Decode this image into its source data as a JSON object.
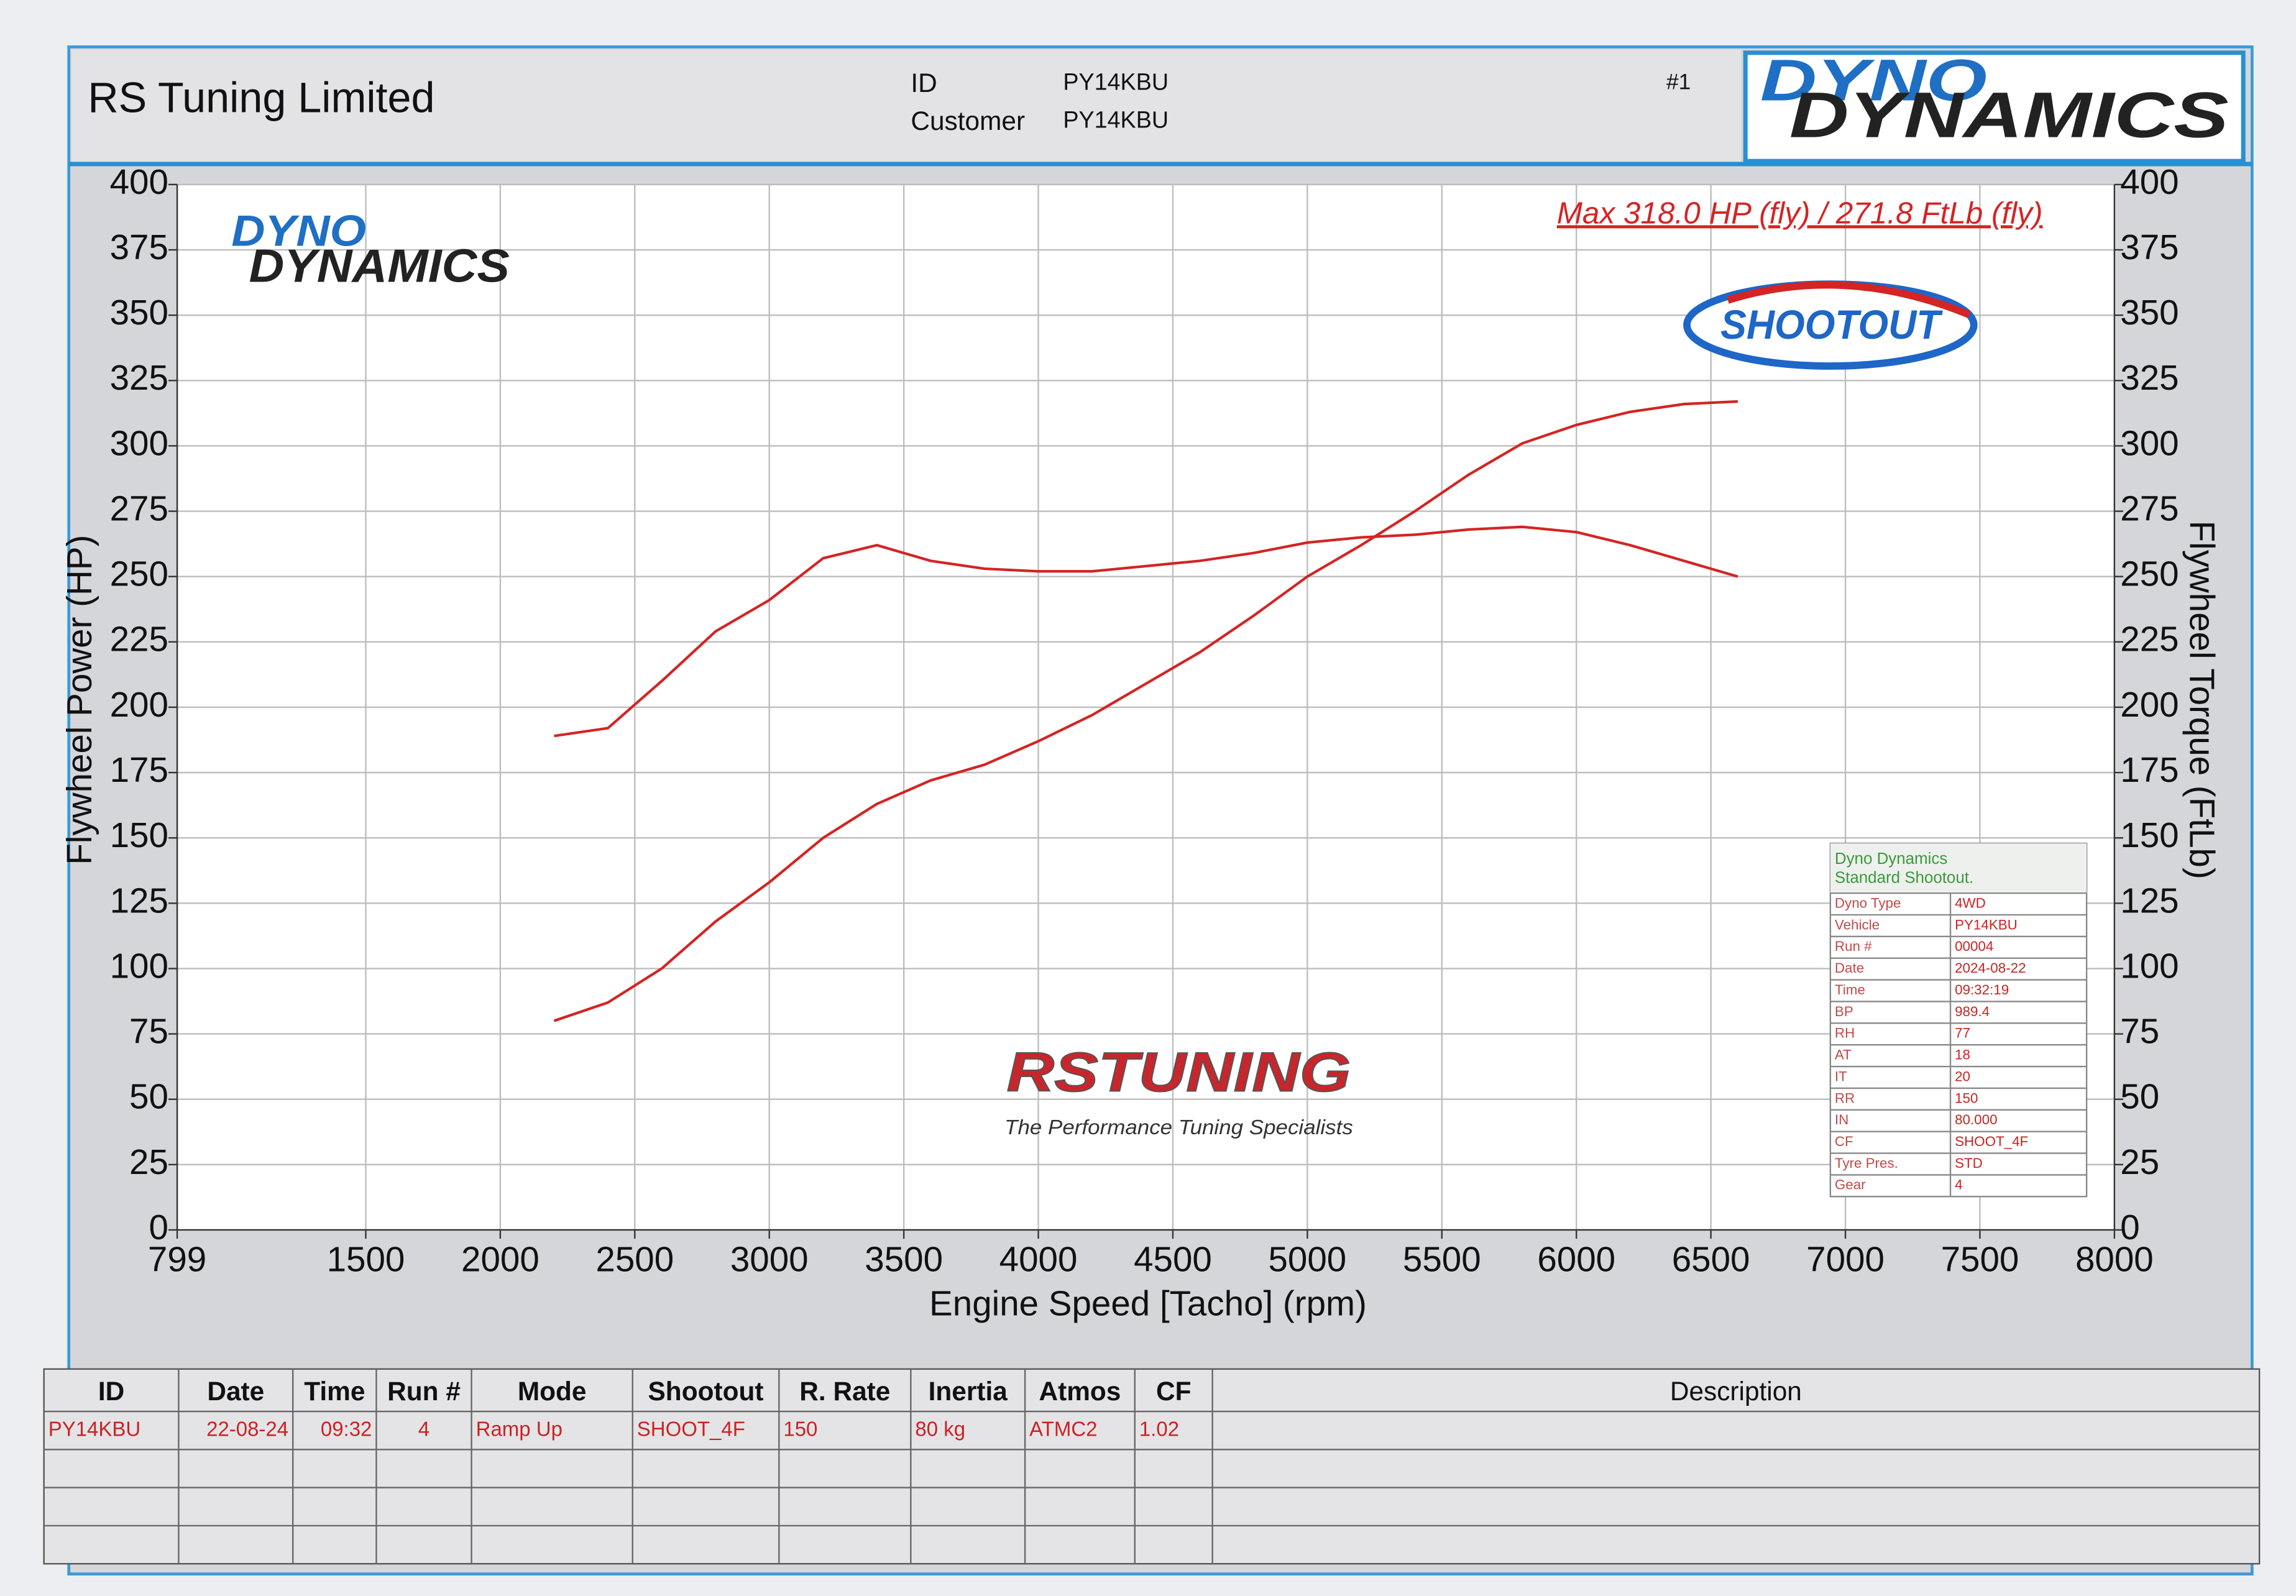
{
  "header": {
    "company": "RS Tuning Limited",
    "id_label": "ID",
    "id": "PY14KBU",
    "customer_label": "Customer",
    "customer": "PY14KBU",
    "run_no": "#1",
    "logo_top": "DYNO",
    "logo_bottom": "DYNAMICS"
  },
  "chart_data": {
    "type": "line",
    "annotation": "Max 318.0 HP (fly) / 271.8 FtLb (fly)",
    "x_label": "Engine Speed [Tacho] (rpm)",
    "y_label": "Flywheel Power (HP)",
    "y2_label": "Flywheel Torque (FtLb)",
    "x": [
      2200,
      2400,
      2600,
      2800,
      3000,
      3200,
      3400,
      3600,
      3800,
      4000,
      4200,
      4400,
      4600,
      4800,
      5000,
      5200,
      5400,
      5600,
      5800,
      6000,
      6200,
      6400,
      6600
    ],
    "series": [
      {
        "color": "#d42424",
        "axis": "y",
        "values": [
          80,
          87,
          100,
          118,
          133,
          150,
          163,
          172,
          178,
          187,
          197,
          209,
          221,
          235,
          250,
          262,
          275,
          289,
          301,
          308,
          313,
          316,
          317
        ]
      },
      {
        "color": "#d42424",
        "axis": "y2",
        "values": [
          189,
          192,
          210,
          229,
          241,
          257,
          262,
          256,
          253,
          252,
          252,
          254,
          256,
          259,
          263,
          265,
          266,
          268,
          269,
          267,
          262,
          256,
          250
        ]
      }
    ],
    "xlim": [
      799,
      8000
    ],
    "xticks": [
      799,
      1500,
      2000,
      2500,
      3000,
      3500,
      4000,
      4500,
      5000,
      5500,
      6000,
      6500,
      7000,
      7500,
      8000
    ],
    "ylim": [
      0,
      400
    ],
    "yticks": [
      0,
      25,
      50,
      75,
      100,
      125,
      150,
      175,
      200,
      225,
      250,
      275,
      300,
      325,
      350,
      375,
      400
    ],
    "y2lim": [
      0,
      400
    ],
    "y2ticks": [
      0,
      25,
      50,
      75,
      100,
      125,
      150,
      175,
      200,
      225,
      250,
      275,
      300,
      325,
      350,
      375,
      400
    ],
    "grid": true
  },
  "watermarks": {
    "dyno_top": "DYNO",
    "dyno_bottom": "DYNAMICS",
    "shootout": "SHOOTOUT",
    "rs": "RSTUNING",
    "tagline": "The Performance Tuning Specialists"
  },
  "info_box": {
    "title_1": "Dyno Dynamics",
    "title_2": "Standard Shootout.",
    "rows": [
      [
        "Dyno Type",
        "4WD"
      ],
      [
        "Vehicle",
        "PY14KBU"
      ],
      [
        "Run #",
        "00004"
      ],
      [
        "Date",
        "2024-08-22"
      ],
      [
        "Time",
        "09:32:19"
      ],
      [
        "BP",
        "989.4"
      ],
      [
        "RH",
        "77"
      ],
      [
        "AT",
        "18"
      ],
      [
        "IT",
        "20"
      ],
      [
        "RR",
        "150"
      ],
      [
        "IN",
        "80.000"
      ],
      [
        "CF",
        "SHOOT_4F"
      ],
      [
        "Tyre Pres.",
        "STD"
      ],
      [
        "Gear",
        "4"
      ]
    ]
  },
  "run_table": {
    "headers": [
      "ID",
      "Date",
      "Time",
      "Run #",
      "Mode",
      "Shootout",
      "R. Rate",
      "Inertia",
      "Atmos",
      "CF",
      "Description"
    ],
    "rows": [
      [
        "PY14KBU",
        "22-08-24",
        "09:32",
        "4",
        "Ramp Up",
        "SHOOT_4F",
        "150",
        "80 kg",
        "ATMC2",
        "1.02"
      ]
    ]
  }
}
